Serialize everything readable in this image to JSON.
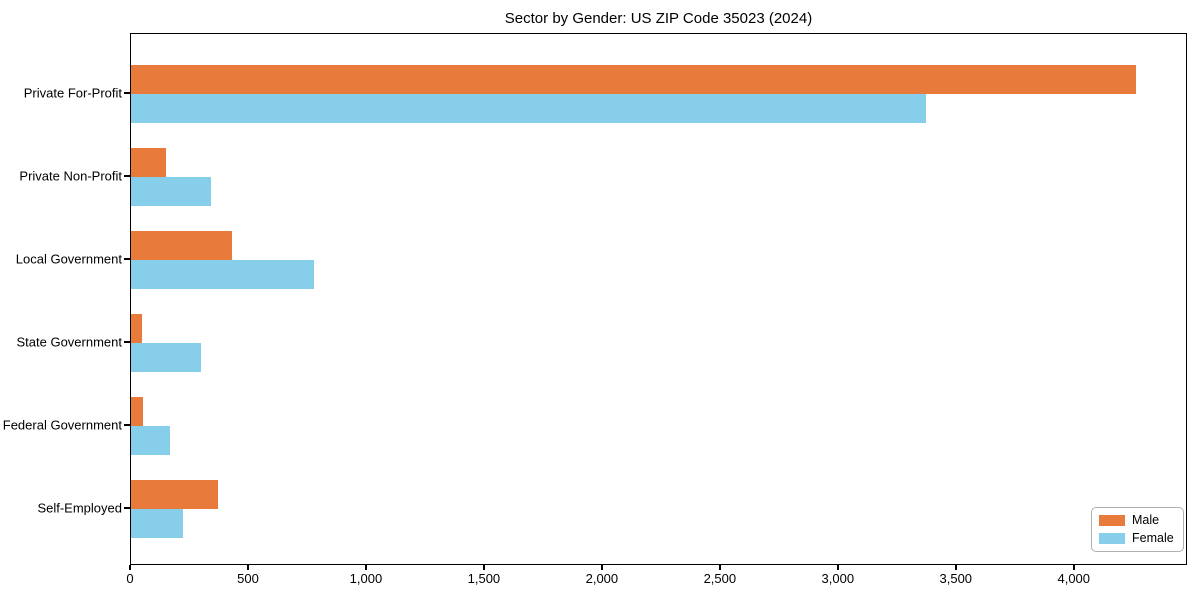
{
  "chart_data": {
    "type": "bar",
    "orientation": "horizontal",
    "title": "Sector by Gender: US ZIP Code 35023 (2024)",
    "categories": [
      "Private For-Profit",
      "Private Non-Profit",
      "Local Government",
      "State Government",
      "Federal Government",
      "Self-Employed"
    ],
    "series": [
      {
        "name": "Male",
        "color": "#e87a3c",
        "values": [
          4260,
          150,
          430,
          45,
          50,
          370
        ]
      },
      {
        "name": "Female",
        "color": "#87ceeb",
        "values": [
          3370,
          340,
          775,
          295,
          165,
          220
        ]
      }
    ],
    "xlabel": "",
    "ylabel": "",
    "xlim": [
      0,
      4480
    ],
    "xticks": [
      0,
      500,
      1000,
      1500,
      2000,
      2500,
      3000,
      3500,
      4000
    ],
    "xtick_labels": [
      "0",
      "500",
      "1,000",
      "1,500",
      "2,000",
      "2,500",
      "3,000",
      "3,500",
      "4,000"
    ],
    "grid": false,
    "legend_position": "lower right",
    "legend_labels": [
      "Male",
      "Female"
    ]
  }
}
